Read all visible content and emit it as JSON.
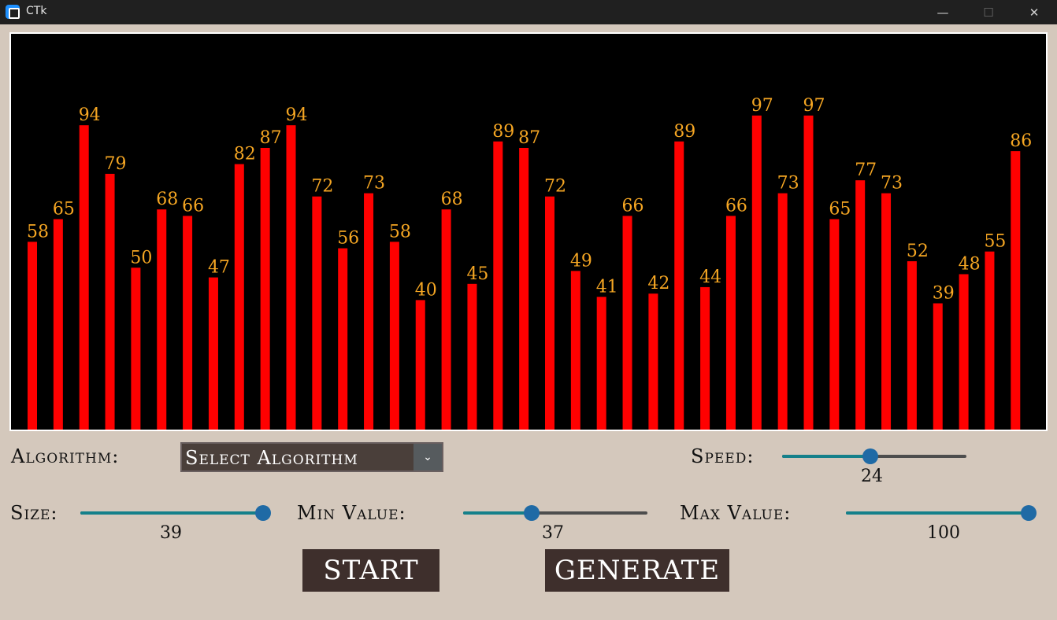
{
  "window": {
    "title": "CTk"
  },
  "controls": {
    "algorithm_label": "Algorithm:",
    "algorithm_selected": "Select Algorithm",
    "speed_label": "Speed:",
    "speed_value": "24",
    "size_label": "Size:",
    "size_value": "39",
    "min_label": "Min Value:",
    "min_value": "37",
    "max_label": "Max Value:",
    "max_value": "100",
    "start_label": "START",
    "generate_label": "GENERATE"
  },
  "sliders": {
    "speed_fraction": 0.48,
    "size_fraction": 1.0,
    "min_fraction": 0.37,
    "max_fraction": 1.0
  },
  "colors": {
    "bar": "#ff0000",
    "value_label": "#f5a623",
    "canvas_bg": "#000000"
  },
  "chart_data": {
    "type": "bar",
    "values": [
      58,
      65,
      94,
      79,
      50,
      68,
      66,
      47,
      82,
      87,
      94,
      72,
      56,
      73,
      58,
      40,
      68,
      45,
      89,
      87,
      72,
      49,
      41,
      66,
      42,
      89,
      44,
      66,
      97,
      73,
      97,
      65,
      77,
      73,
      52,
      39,
      48,
      55,
      86
    ]
  }
}
